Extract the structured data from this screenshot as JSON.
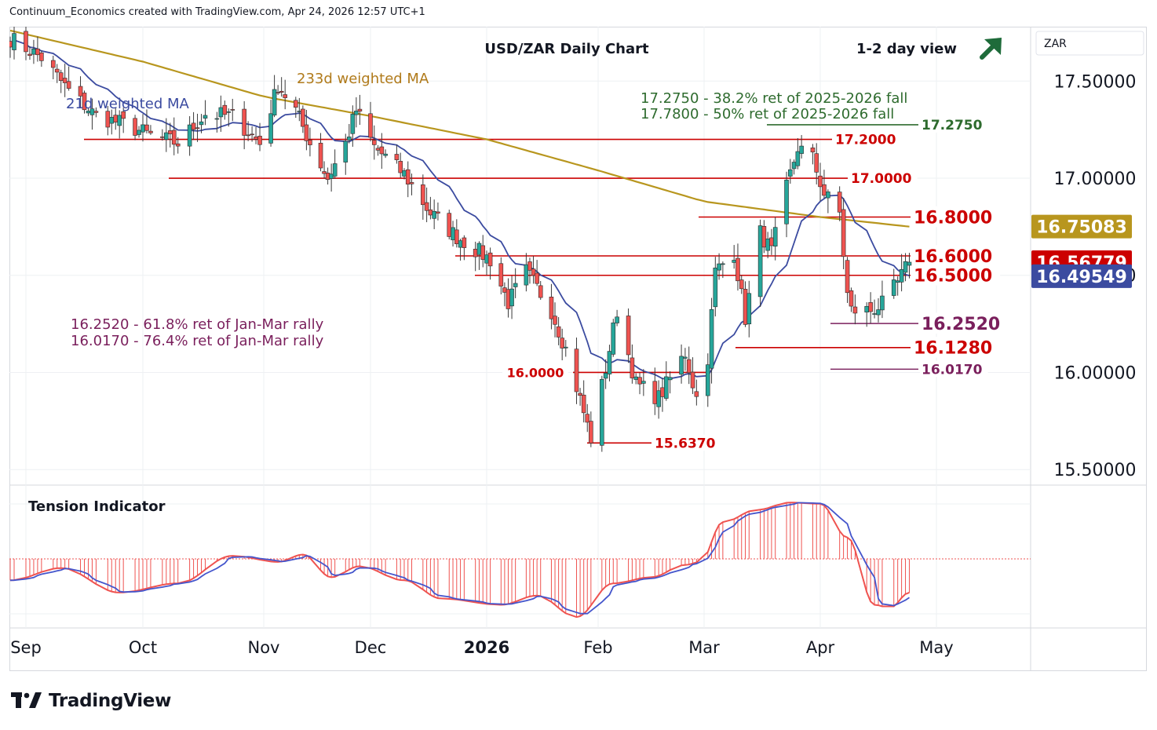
{
  "header": "Continuum_Economics created with TradingView.com, Apr 24, 2026 12:57 UTC+1",
  "brand": "TradingView",
  "chart_data": {
    "type": "candlestick",
    "title": "USD/ZAR Daily Chart",
    "view": {
      "label": "1-2 day view",
      "direction": "up"
    },
    "currency": "ZAR",
    "colors": {
      "up": "#26a69a",
      "down": "#ef5350",
      "ma21": "#3b4ba0",
      "ma233": "#b8961e",
      "resistance": "#cc0000",
      "support_purple": "#7a1f5c",
      "fib_green": "#2e6b2e",
      "tension_hist": "#ef5350",
      "tension_line": "#4455cc"
    },
    "y_axis": {
      "ticks": [
        "17.50000",
        "17.00000",
        "16.50000",
        "16.00000",
        "15.50000"
      ],
      "range": [
        15.42,
        17.78
      ]
    },
    "x_axis": {
      "labels": [
        "Sep",
        "Oct",
        "Nov",
        "Dec",
        "2026",
        "Feb",
        "Mar",
        "Apr",
        "May"
      ]
    },
    "price_badges": [
      {
        "label": "16.75083",
        "value": 16.7508,
        "color": "#b8961e"
      },
      {
        "label": "16.56779",
        "value": 16.5678,
        "color": "#cc0000"
      },
      {
        "label": "16.49549",
        "value": 16.4955,
        "color": "#3b4ba0"
      }
    ],
    "ma_labels": {
      "ma21": "21d weighted MA",
      "ma233": "233d weighted MA"
    },
    "annotations": {
      "fib_resistance": [
        "17.2750 - 38.2% ret of 2025-2026 fall",
        "17.7800 - 50% ret of 2025-2026 fall"
      ],
      "fib_support": [
        "16.2520 - 61.8% ret of Jan-Mar rally",
        "16.0170 - 76.4% ret of Jan-Mar rally"
      ]
    },
    "levels": [
      {
        "label": "17.2750",
        "value": 17.275,
        "style": "green"
      },
      {
        "label": "17.2000",
        "value": 17.2,
        "style": "red"
      },
      {
        "label": "17.0000",
        "value": 17.0,
        "style": "red"
      },
      {
        "label": "16.8000",
        "value": 16.8,
        "style": "red"
      },
      {
        "label": "16.6000",
        "value": 16.6,
        "style": "red"
      },
      {
        "label": "16.5000",
        "value": 16.5,
        "style": "red"
      },
      {
        "label": "16.2520",
        "value": 16.252,
        "style": "purple"
      },
      {
        "label": "16.1280",
        "value": 16.128,
        "style": "red"
      },
      {
        "label": "16.0170",
        "value": 16.017,
        "style": "purple"
      },
      {
        "label": "16.0000",
        "value": 16.0,
        "style": "red"
      },
      {
        "label": "15.6370",
        "value": 15.637,
        "style": "red"
      }
    ],
    "tension_indicator": {
      "label": "Tension Indicator"
    },
    "keypoints": [
      [
        "2025-08-28",
        17.72
      ],
      [
        "2025-09-05",
        17.62
      ],
      [
        "2025-09-12",
        17.45
      ],
      [
        "2025-09-19",
        17.32
      ],
      [
        "2025-09-26",
        17.28
      ],
      [
        "2025-10-03",
        17.22
      ],
      [
        "2025-10-10",
        17.18
      ],
      [
        "2025-10-17",
        17.33
      ],
      [
        "2025-10-24",
        17.32
      ],
      [
        "2025-10-31",
        17.18
      ],
      [
        "2025-11-05",
        17.48
      ],
      [
        "2025-11-10",
        17.35
      ],
      [
        "2025-11-14",
        17.18
      ],
      [
        "2025-11-19",
        17.0
      ],
      [
        "2025-11-24",
        17.18
      ],
      [
        "2025-11-27",
        17.35
      ],
      [
        "2025-12-02",
        17.16
      ],
      [
        "2025-12-10",
        17.02
      ],
      [
        "2025-12-17",
        16.82
      ],
      [
        "2025-12-24",
        16.7
      ],
      [
        "2026-01-02",
        16.58
      ],
      [
        "2026-01-07",
        16.36
      ],
      [
        "2026-01-12",
        16.52
      ],
      [
        "2026-01-19",
        16.32
      ],
      [
        "2026-01-23",
        16.12
      ],
      [
        "2026-01-27",
        15.86
      ],
      [
        "2026-01-30",
        15.66
      ],
      [
        "2026-02-03",
        16.02
      ],
      [
        "2026-02-06",
        16.32
      ],
      [
        "2026-02-11",
        15.94
      ],
      [
        "2026-02-17",
        15.87
      ],
      [
        "2026-02-24",
        16.1
      ],
      [
        "2026-02-27",
        15.87
      ],
      [
        "2026-03-02",
        16.08
      ],
      [
        "2026-03-04",
        16.52
      ],
      [
        "2026-03-09",
        16.62
      ],
      [
        "2026-03-12",
        16.28
      ],
      [
        "2026-03-16",
        16.72
      ],
      [
        "2026-03-19",
        16.62
      ],
      [
        "2026-03-23",
        16.95
      ],
      [
        "2026-03-26",
        17.16
      ],
      [
        "2026-03-30",
        17.1
      ],
      [
        "2026-04-02",
        16.92
      ],
      [
        "2026-04-06",
        16.82
      ],
      [
        "2026-04-08",
        16.4
      ],
      [
        "2026-04-09",
        16.32
      ],
      [
        "2026-04-14",
        16.32
      ],
      [
        "2026-04-17",
        16.35
      ],
      [
        "2026-04-21",
        16.46
      ],
      [
        "2026-04-24",
        16.57
      ]
    ]
  }
}
